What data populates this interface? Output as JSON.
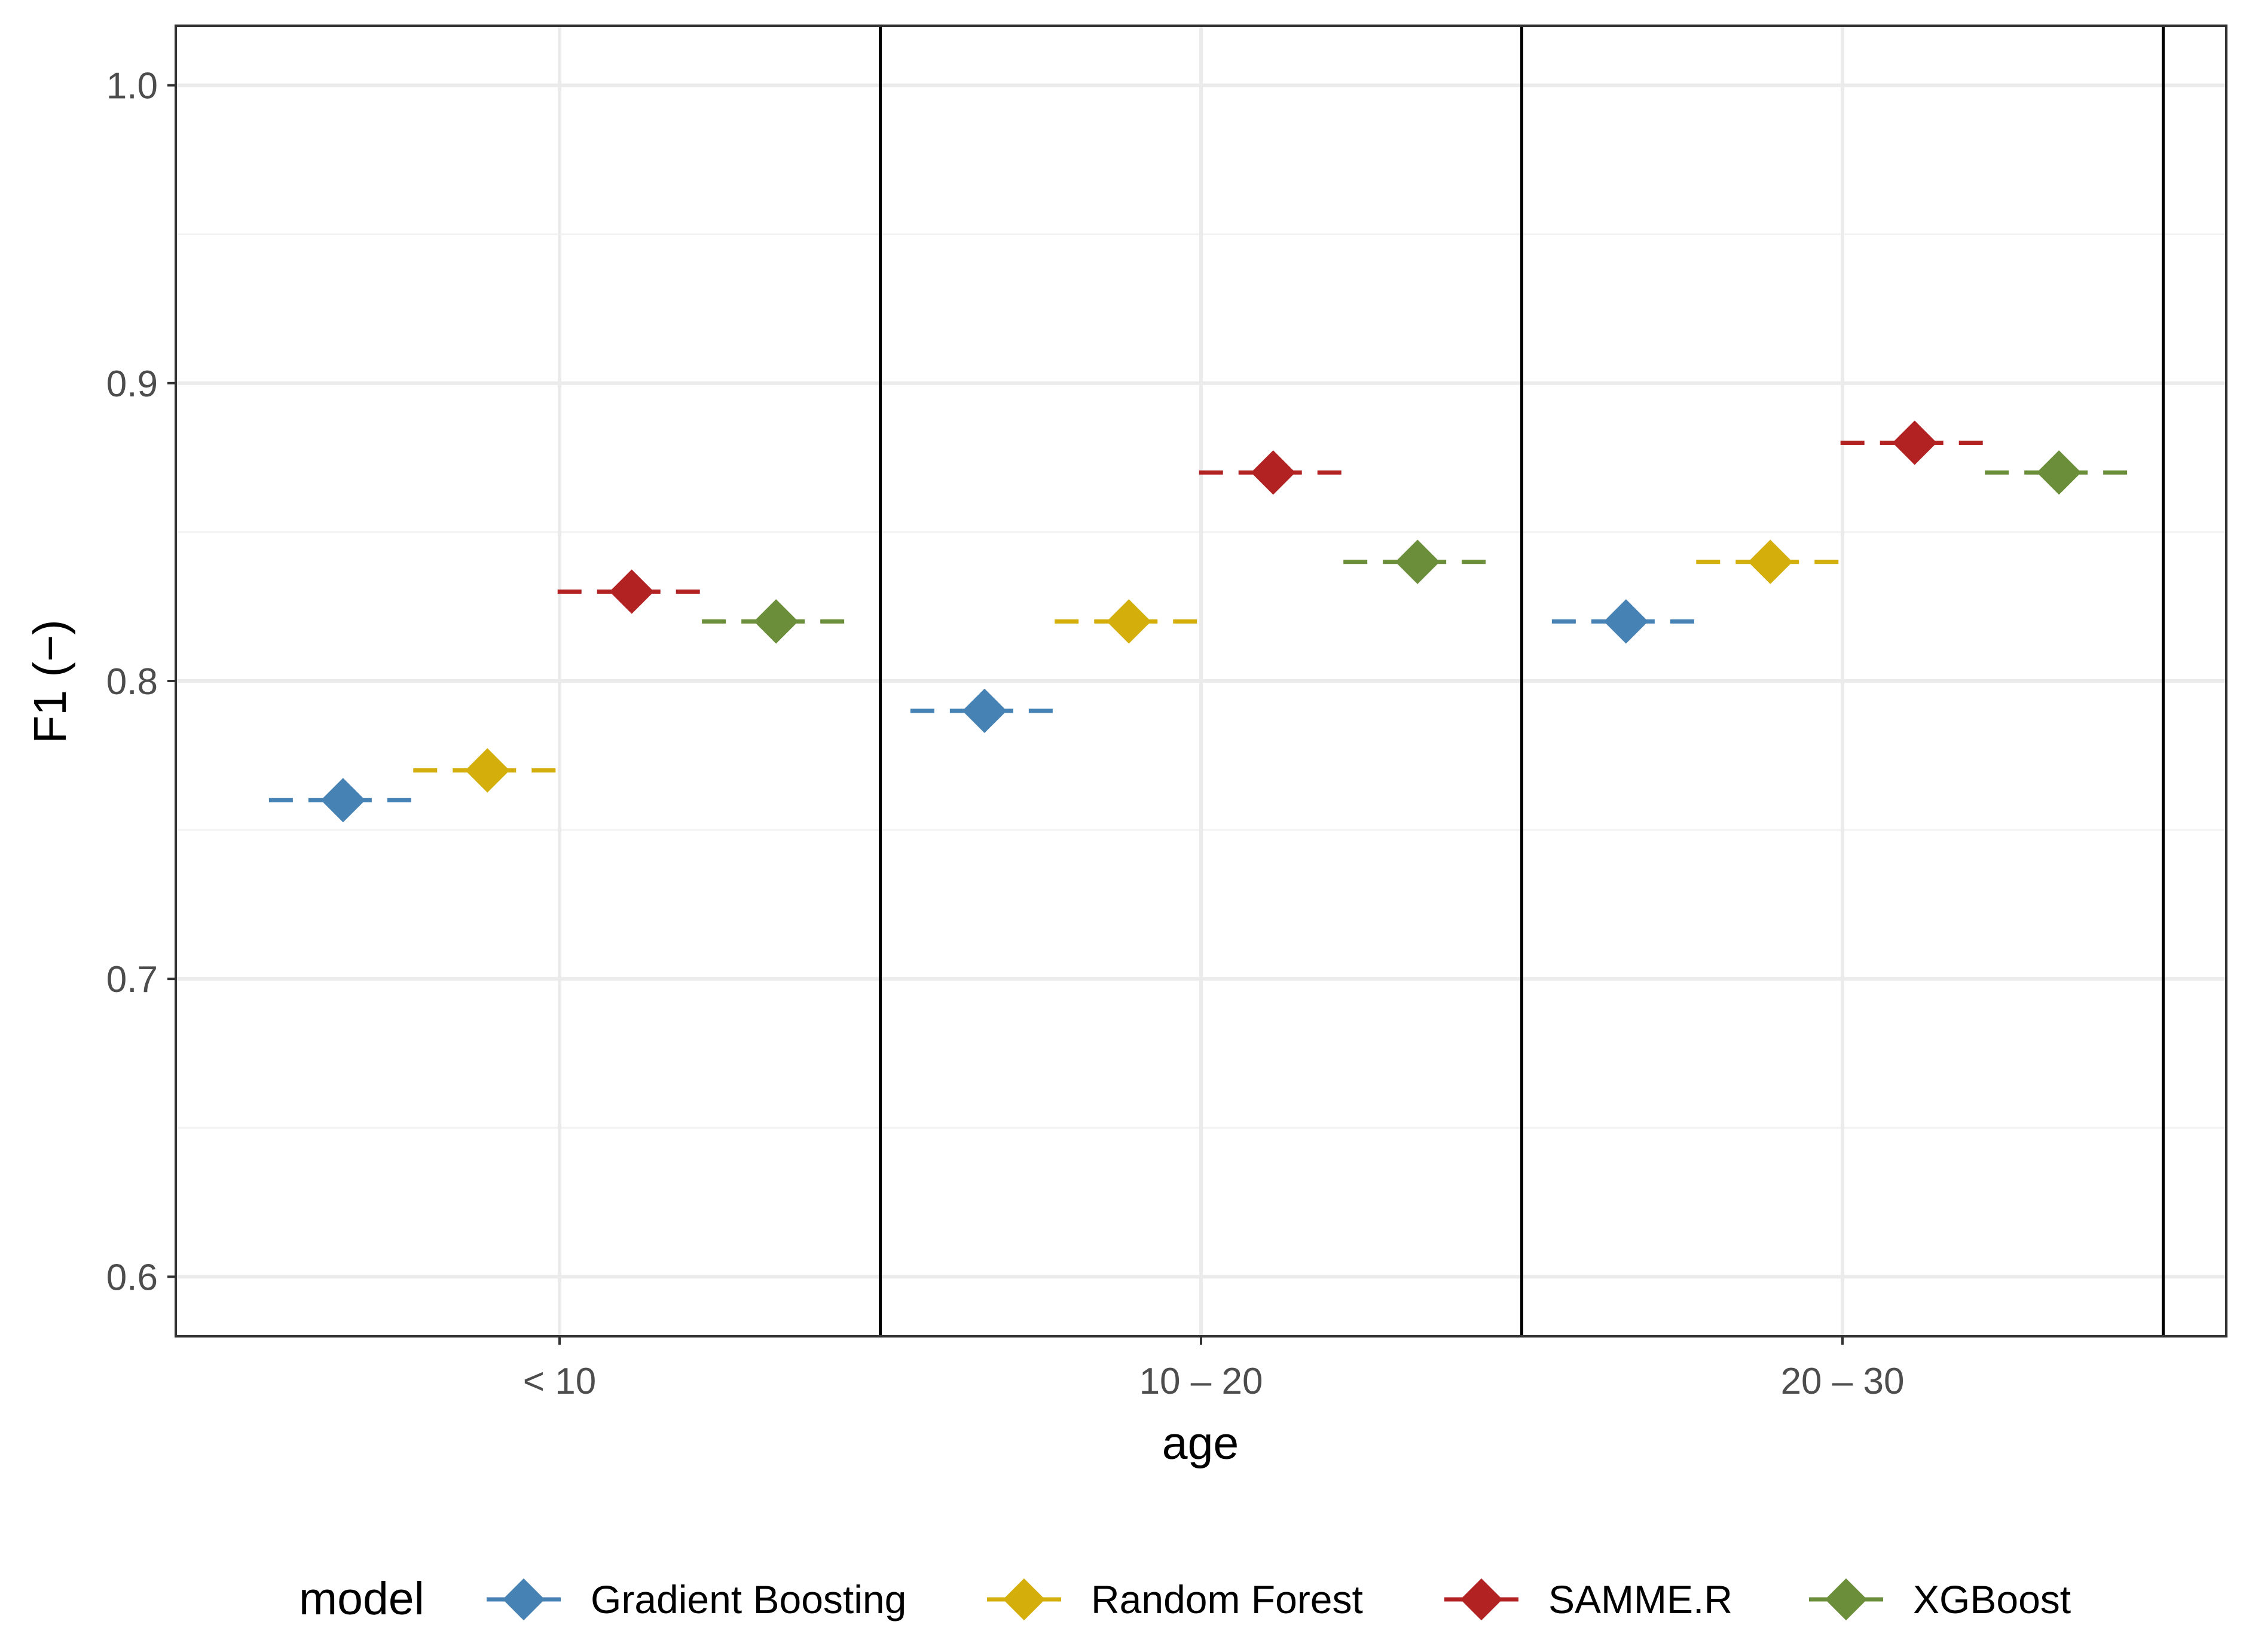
{
  "chart_data": {
    "type": "scatter",
    "title": "",
    "xlabel": "age",
    "ylabel": "F1 (−)",
    "categories": [
      "< 10",
      "10 – 20",
      "20 – 30"
    ],
    "ylim": [
      0.58,
      1.02
    ],
    "yticks": [
      0.6,
      0.7,
      0.8,
      0.9,
      1.0
    ],
    "ytick_labels": [
      "0.6",
      "0.7",
      "0.8",
      "0.9",
      "1.0"
    ],
    "grid": true,
    "legend": {
      "title": "model",
      "position": "bottom"
    },
    "series": [
      {
        "name": "Gradient Boosting",
        "color": "#4682B4",
        "values": [
          0.76,
          0.79,
          0.82
        ]
      },
      {
        "name": "Random Forest",
        "color": "#D4AF0B",
        "values": [
          0.77,
          0.82,
          0.84
        ]
      },
      {
        "name": "SAMME.R",
        "color": "#B22222",
        "values": [
          0.83,
          0.87,
          0.88
        ]
      },
      {
        "name": "XGBoost",
        "color": "#6B8E3A",
        "values": [
          0.82,
          0.84,
          0.87
        ]
      }
    ]
  }
}
